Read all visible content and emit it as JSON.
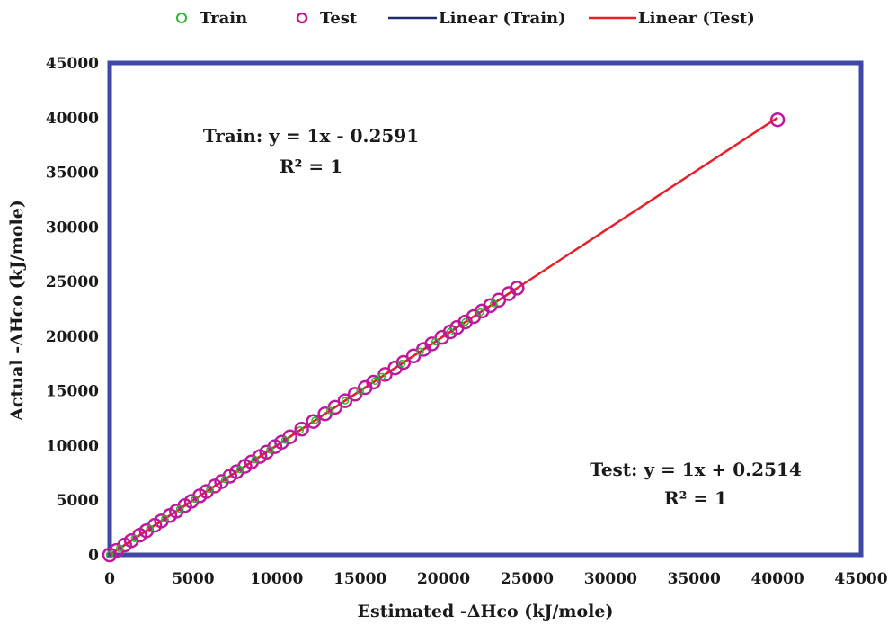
{
  "chart_data": {
    "type": "scatter",
    "title": "",
    "xlabel": "Estimated  -ΔHco (kJ/mole)",
    "ylabel": "Actual  -ΔHco (kJ/mole)",
    "xlim": [
      0,
      45000
    ],
    "ylim": [
      0,
      45000
    ],
    "xticks": [
      "0",
      "5000",
      "10000",
      "15000",
      "20000",
      "25000",
      "30000",
      "35000",
      "40000",
      "45000"
    ],
    "yticks": [
      "0",
      "5000",
      "10000",
      "15000",
      "20000",
      "25000",
      "30000",
      "35000",
      "40000",
      "45000"
    ],
    "grid": false,
    "legend_position": "top",
    "legend": [
      {
        "label": "Train",
        "kind": "marker",
        "color": "#2eb82e"
      },
      {
        "label": "Test",
        "kind": "marker",
        "color": "#c0189a"
      },
      {
        "label": "Linear (Train)",
        "kind": "line",
        "color": "#1f2a6b"
      },
      {
        "label": "Linear (Test)",
        "kind": "line",
        "color": "#e8202a"
      }
    ],
    "series": [
      {
        "name": "Train",
        "color": "#2eb82e",
        "points": [
          [
            0,
            0
          ],
          [
            600,
            600
          ],
          [
            1500,
            1500
          ],
          [
            2400,
            2400
          ],
          [
            3300,
            3300
          ],
          [
            4200,
            4200
          ],
          [
            5100,
            5100
          ],
          [
            6000,
            6000
          ],
          [
            6900,
            6900
          ],
          [
            7800,
            7800
          ],
          [
            8700,
            8700
          ],
          [
            9600,
            9600
          ],
          [
            10500,
            10500
          ],
          [
            11400,
            11400
          ],
          [
            12300,
            12300
          ],
          [
            13200,
            13200
          ],
          [
            14100,
            14100
          ],
          [
            15000,
            15000
          ],
          [
            15900,
            15900
          ],
          [
            16300,
            16300
          ],
          [
            17500,
            17500
          ],
          [
            18600,
            18600
          ],
          [
            19500,
            19500
          ],
          [
            20400,
            20400
          ],
          [
            21300,
            21300
          ],
          [
            22200,
            22200
          ],
          [
            23000,
            23000
          ]
        ]
      },
      {
        "name": "Test",
        "color": "#c0189a",
        "points": [
          [
            0,
            0
          ],
          [
            400,
            400
          ],
          [
            900,
            900
          ],
          [
            1300,
            1300
          ],
          [
            1800,
            1800
          ],
          [
            2200,
            2200
          ],
          [
            2700,
            2700
          ],
          [
            3100,
            3100
          ],
          [
            3600,
            3600
          ],
          [
            4000,
            4000
          ],
          [
            4500,
            4500
          ],
          [
            4900,
            4900
          ],
          [
            5400,
            5400
          ],
          [
            5800,
            5800
          ],
          [
            6300,
            6300
          ],
          [
            6700,
            6700
          ],
          [
            7200,
            7200
          ],
          [
            7600,
            7600
          ],
          [
            8100,
            8100
          ],
          [
            8500,
            8500
          ],
          [
            9000,
            9000
          ],
          [
            9400,
            9400
          ],
          [
            9900,
            9900
          ],
          [
            10300,
            10300
          ],
          [
            10800,
            10800
          ],
          [
            11500,
            11500
          ],
          [
            12200,
            12200
          ],
          [
            12900,
            12900
          ],
          [
            13500,
            13500
          ],
          [
            14100,
            14100
          ],
          [
            14700,
            14700
          ],
          [
            15300,
            15300
          ],
          [
            15800,
            15800
          ],
          [
            16500,
            16500
          ],
          [
            17100,
            17100
          ],
          [
            17600,
            17600
          ],
          [
            18200,
            18200
          ],
          [
            18800,
            18800
          ],
          [
            19300,
            19300
          ],
          [
            19900,
            19900
          ],
          [
            20400,
            20400
          ],
          [
            20800,
            20800
          ],
          [
            21300,
            21300
          ],
          [
            21800,
            21800
          ],
          [
            22300,
            22300
          ],
          [
            22800,
            22800
          ],
          [
            23300,
            23300
          ],
          [
            23900,
            23900
          ],
          [
            24400,
            24400
          ],
          [
            40000,
            39800
          ]
        ]
      }
    ],
    "trendlines": [
      {
        "name": "Linear (Train)",
        "color": "#1f2a6b",
        "slope": 1,
        "intercept": -0.2591,
        "x_range": [
          0,
          24400
        ]
      },
      {
        "name": "Linear (Test)",
        "color": "#e8202a",
        "slope": 1,
        "intercept": 0.2514,
        "x_range": [
          0,
          40000
        ]
      }
    ],
    "annotations": [
      {
        "line1": "Train: y = 1x - 0.2591",
        "line2": "R² = 1"
      },
      {
        "line1": "Test: y = 1x + 0.2514",
        "line2": "R² = 1"
      }
    ],
    "frame_color": "#3f48a6"
  }
}
